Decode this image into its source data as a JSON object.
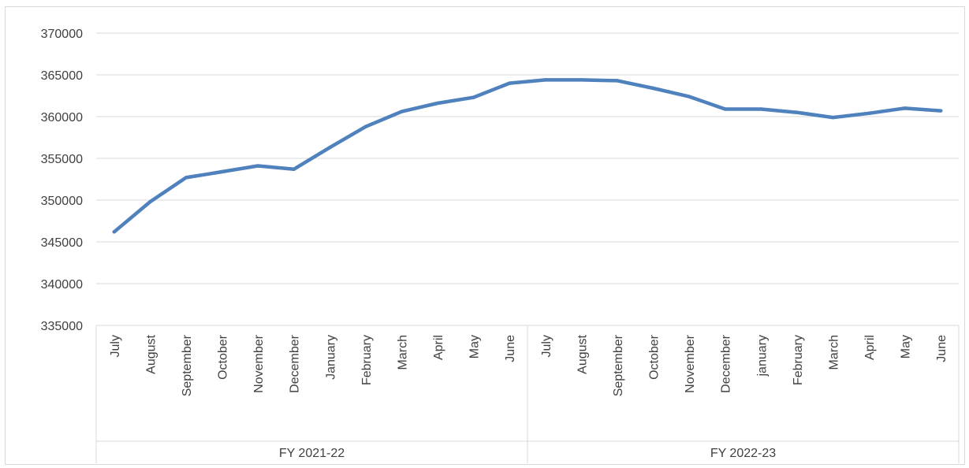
{
  "chart_data": {
    "type": "line",
    "title": "",
    "xlabel": "",
    "ylabel": "",
    "ylim": [
      335000,
      370000
    ],
    "yticks": [
      335000,
      340000,
      345000,
      350000,
      355000,
      360000,
      365000,
      370000
    ],
    "grid": true,
    "legend": "none",
    "groups": [
      {
        "label": "FY 2021-22",
        "count": 12
      },
      {
        "label": "FY 2022-23",
        "count": 12
      }
    ],
    "categories": [
      "July",
      "August",
      "September",
      "October",
      "November",
      "December",
      "January",
      "February",
      "March",
      "April",
      "May",
      "June",
      "July",
      "August",
      "September",
      "October",
      "November",
      "December",
      "january",
      "February",
      "March",
      "April",
      "May",
      "June"
    ],
    "series": [
      {
        "color": "#4f81bd",
        "values": [
          346200,
          349800,
          352700,
          353400,
          354100,
          353700,
          356300,
          358800,
          360600,
          361600,
          362300,
          364000,
          364400,
          364400,
          364300,
          363400,
          362400,
          360900,
          360900,
          360500,
          359900,
          360400,
          361000,
          360700
        ]
      }
    ]
  }
}
